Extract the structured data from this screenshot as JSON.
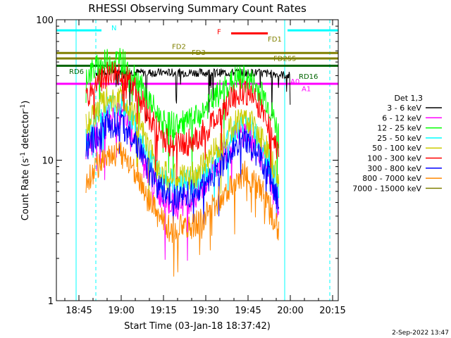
{
  "chart_data": {
    "type": "line",
    "title": "RHESSI Observing Summary Count Rates",
    "xlabel": "Start Time (03-Jan-18 18:37:42)",
    "ylabel_parts": [
      "Count Rate (s",
      "-1",
      " detector",
      "-1",
      ")"
    ],
    "y_scale": "log",
    "ylim": [
      1,
      100
    ],
    "xlim_minutes": [
      0,
      100
    ],
    "x_ticks": [
      {
        "m": 8,
        "label": "18:45"
      },
      {
        "m": 23,
        "label": "19:00"
      },
      {
        "m": 38,
        "label": "19:15"
      },
      {
        "m": 53,
        "label": "19:30"
      },
      {
        "m": 68,
        "label": "19:45"
      },
      {
        "m": 83,
        "label": "20:00"
      },
      {
        "m": 98,
        "label": "20:15"
      }
    ],
    "y_ticks": [
      {
        "v": 1,
        "label": "1"
      },
      {
        "v": 10,
        "label": "10"
      },
      {
        "v": 100,
        "label": "100"
      }
    ],
    "grid": false,
    "legend_title": "Det 1,3",
    "legend_placement": "right",
    "series": [
      {
        "name": "3 - 6 keV",
        "color": "#000000",
        "points": [
          [
            14,
            42
          ],
          [
            20,
            43
          ],
          [
            30,
            42
          ],
          [
            40,
            42
          ],
          [
            50,
            42
          ],
          [
            60,
            42
          ],
          [
            70,
            42
          ],
          [
            78,
            41
          ],
          [
            83,
            40
          ]
        ]
      },
      {
        "name": "6 - 12 keV",
        "color": "#ff00ff",
        "points": [
          [
            10.5,
            12
          ],
          [
            14,
            16
          ],
          [
            18,
            20
          ],
          [
            23,
            21
          ],
          [
            28,
            15
          ],
          [
            32,
            9
          ],
          [
            36,
            6
          ],
          [
            40,
            5
          ],
          [
            45,
            5
          ],
          [
            50,
            5.5
          ],
          [
            55,
            8
          ],
          [
            60,
            12
          ],
          [
            64,
            15
          ],
          [
            67,
            16
          ],
          [
            70,
            14
          ],
          [
            74,
            10
          ],
          [
            77,
            6
          ],
          [
            79,
            4
          ]
        ]
      },
      {
        "name": "12 - 25 keV",
        "color": "#00ff00",
        "points": [
          [
            10.5,
            40
          ],
          [
            14,
            45
          ],
          [
            18,
            50
          ],
          [
            23,
            52
          ],
          [
            28,
            40
          ],
          [
            32,
            28
          ],
          [
            36,
            21
          ],
          [
            40,
            18
          ],
          [
            45,
            18
          ],
          [
            50,
            20
          ],
          [
            55,
            26
          ],
          [
            60,
            33
          ],
          [
            64,
            38
          ],
          [
            67,
            38
          ],
          [
            70,
            35
          ],
          [
            74,
            28
          ],
          [
            77,
            20
          ],
          [
            79,
            15
          ]
        ]
      },
      {
        "name": "25 - 50 keV",
        "color": "#00ffff",
        "points": [
          [
            10.5,
            14
          ],
          [
            14,
            19
          ],
          [
            18,
            24
          ],
          [
            23,
            25
          ],
          [
            28,
            18
          ],
          [
            32,
            11
          ],
          [
            36,
            8
          ],
          [
            40,
            7
          ],
          [
            45,
            7
          ],
          [
            50,
            7
          ],
          [
            55,
            9
          ],
          [
            60,
            13
          ],
          [
            64,
            17
          ],
          [
            67,
            18
          ],
          [
            70,
            16
          ],
          [
            74,
            12
          ],
          [
            77,
            8
          ],
          [
            79,
            6
          ]
        ]
      },
      {
        "name": "50 - 100 keV",
        "color": "#cccc00",
        "points": [
          [
            10.5,
            17
          ],
          [
            14,
            22
          ],
          [
            18,
            27
          ],
          [
            23,
            28
          ],
          [
            28,
            21
          ],
          [
            32,
            13
          ],
          [
            36,
            9
          ],
          [
            40,
            7.5
          ],
          [
            45,
            7.5
          ],
          [
            50,
            8
          ],
          [
            55,
            11
          ],
          [
            60,
            15
          ],
          [
            64,
            19
          ],
          [
            67,
            20
          ],
          [
            70,
            18
          ],
          [
            74,
            13
          ],
          [
            77,
            9
          ],
          [
            79,
            7
          ]
        ]
      },
      {
        "name": "100 - 300 keV",
        "color": "#ff0000",
        "points": [
          [
            10.5,
            28
          ],
          [
            14,
            35
          ],
          [
            18,
            40
          ],
          [
            23,
            42
          ],
          [
            28,
            33
          ],
          [
            32,
            22
          ],
          [
            36,
            16
          ],
          [
            40,
            13
          ],
          [
            45,
            13
          ],
          [
            50,
            14
          ],
          [
            55,
            18
          ],
          [
            60,
            24
          ],
          [
            64,
            30
          ],
          [
            67,
            31
          ],
          [
            70,
            28
          ],
          [
            74,
            21
          ],
          [
            77,
            15
          ],
          [
            79,
            11
          ]
        ]
      },
      {
        "name": "300 - 800 keV",
        "color": "#0000ff",
        "points": [
          [
            10.5,
            12
          ],
          [
            14,
            15
          ],
          [
            18,
            18
          ],
          [
            23,
            18
          ],
          [
            28,
            14
          ],
          [
            32,
            9
          ],
          [
            36,
            6.5
          ],
          [
            40,
            5.5
          ],
          [
            45,
            5.5
          ],
          [
            50,
            6
          ],
          [
            55,
            7.5
          ],
          [
            60,
            10
          ],
          [
            64,
            13
          ],
          [
            67,
            13.5
          ],
          [
            70,
            12
          ],
          [
            74,
            9
          ],
          [
            77,
            6.5
          ],
          [
            79,
            5
          ]
        ]
      },
      {
        "name": "800 - 7000 keV",
        "color": "#ff8800",
        "points": [
          [
            10.5,
            7
          ],
          [
            14,
            9
          ],
          [
            18,
            11
          ],
          [
            23,
            11
          ],
          [
            28,
            8.5
          ],
          [
            32,
            5.5
          ],
          [
            36,
            4
          ],
          [
            40,
            3.3
          ],
          [
            45,
            3.3
          ],
          [
            50,
            3.5
          ],
          [
            55,
            4.5
          ],
          [
            60,
            6
          ],
          [
            64,
            7.5
          ],
          [
            67,
            8
          ],
          [
            70,
            7
          ],
          [
            74,
            5.5
          ],
          [
            77,
            4
          ],
          [
            79,
            3
          ]
        ]
      },
      {
        "name": "7000 - 15000 keV",
        "color": "#808000",
        "points": [
          [
            0,
            58
          ],
          [
            100,
            58
          ]
        ]
      }
    ],
    "annotations": [
      {
        "text": "N",
        "color": "#00ffff",
        "m": 19.5,
        "v": 84
      },
      {
        "text": "F",
        "color": "#ff0000",
        "m": 57,
        "v": 79
      },
      {
        "text": "FD1",
        "color": "#808000",
        "m": 75,
        "v": 70
      },
      {
        "text": "FD2",
        "color": "#808000",
        "m": 41,
        "v": 62
      },
      {
        "text": "FD3",
        "color": "#808000",
        "m": 48,
        "v": 56
      },
      {
        "text": "FD255",
        "color": "#808000",
        "m": 77,
        "v": 51
      },
      {
        "text": "RD6",
        "color": "#006400",
        "m": 4.5,
        "v": 41
      },
      {
        "text": "RD16",
        "color": "#006400",
        "m": 86,
        "v": 38
      },
      {
        "text": "A0",
        "color": "#ff00ff",
        "m": 83,
        "v": 35
      },
      {
        "text": "A1",
        "color": "#ff00ff",
        "m": 87,
        "v": 31
      }
    ],
    "flag_lines": [
      {
        "color": "#00ffff",
        "v": 84,
        "from": 0,
        "to": 16
      },
      {
        "color": "#00ffff",
        "v": 84,
        "from": 82,
        "to": 100
      },
      {
        "color": "#ff0000",
        "v": 80,
        "from": 62,
        "to": 75
      },
      {
        "color": "#808000",
        "v": 58,
        "from": 0,
        "to": 100
      },
      {
        "color": "#808000",
        "v": 53,
        "from": 0,
        "to": 100
      },
      {
        "color": "#006400",
        "v": 47,
        "from": 0,
        "to": 100
      },
      {
        "color": "#ff00ff",
        "v": 35,
        "from": 0,
        "to": 100
      }
    ],
    "vertical_markers": [
      {
        "m": 7,
        "color": "#00ffff",
        "style": "solid"
      },
      {
        "m": 14,
        "color": "#00ffff",
        "style": "dashed"
      },
      {
        "m": 81,
        "color": "#00ffff",
        "style": "solid"
      },
      {
        "m": 97,
        "color": "#00ffff",
        "style": "dashed"
      }
    ],
    "timestamp": "2-Sep-2022 13:47"
  }
}
